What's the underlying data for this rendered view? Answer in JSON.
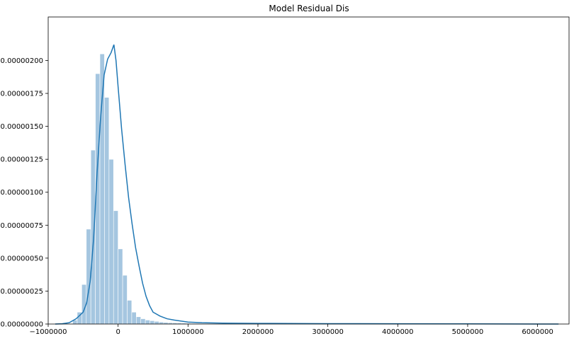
{
  "chart_data": {
    "type": "bar",
    "title": "Model Residual Dis",
    "xlabel": "",
    "ylabel": "",
    "xlim": [
      -1000000,
      6450000
    ],
    "ylim": [
      0,
      2.33e-06
    ],
    "grid": false,
    "legend": "none",
    "colors": {
      "bars": "#a5c6e0",
      "kde": "#1f77b4"
    },
    "xticks": [
      -1000000,
      0,
      1000000,
      2000000,
      3000000,
      4000000,
      5000000,
      6000000
    ],
    "xtick_labels": [
      "−1000000",
      "0",
      "1000000",
      "2000000",
      "3000000",
      "4000000",
      "5000000",
      "6000000"
    ],
    "yticks": [
      0,
      2.5e-07,
      5e-07,
      7.5e-07,
      1e-06,
      1.25e-06,
      1.5e-06,
      1.75e-06,
      2e-06
    ],
    "ytick_labels": [
      "0.00000000",
      "0.00000025",
      "0.00000050",
      "0.00000075",
      "0.00000100",
      "0.00000125",
      "0.00000150",
      "0.00000175",
      "0.00000200"
    ],
    "histogram": {
      "bin_start": -650000,
      "bin_width": 65000,
      "densities": [
        3e-08,
        9e-08,
        3e-07,
        7.2e-07,
        1.32e-06,
        1.9e-06,
        2.05e-06,
        1.72e-06,
        1.25e-06,
        8.6e-07,
        5.7e-07,
        3.7e-07,
        1.8e-07,
        9e-08,
        5.5e-08,
        4e-08,
        3e-08,
        2.5e-08,
        2e-08,
        1.5e-08,
        1.2e-08,
        1e-08,
        9e-09,
        8e-09,
        7e-09,
        6e-09,
        5e-09,
        5e-09,
        4e-09,
        4e-09,
        3e-09,
        3e-09,
        3e-09,
        3e-09,
        2e-09,
        2e-09,
        2e-09,
        2e-09,
        2e-09,
        2e-09,
        2e-09,
        2e-09,
        2e-09,
        1e-09,
        1e-09,
        1e-09,
        1e-09,
        1e-09,
        1e-09,
        1e-09,
        1e-09,
        1e-09,
        1e-09,
        1e-09,
        1e-09,
        1e-09,
        1e-09,
        1e-09,
        1e-09,
        1e-09,
        1e-09,
        1e-09,
        1e-09,
        1e-09,
        1e-09,
        1e-09,
        1e-09,
        1e-09,
        1e-09,
        1e-09,
        1e-09,
        1e-09,
        1e-09,
        1e-09,
        1e-09,
        1e-09,
        1e-09,
        1e-09,
        1e-09,
        1e-09,
        1e-09,
        1e-09,
        1e-09,
        1e-09,
        1e-09,
        1e-09,
        1e-09,
        1e-09,
        1e-09,
        1e-09,
        1e-09,
        1e-09,
        1e-09,
        1e-09,
        1e-09,
        1e-09,
        1e-09,
        1e-09,
        1e-09,
        1e-09,
        1e-09,
        1e-09,
        1e-09,
        1e-09,
        1e-09
      ]
    },
    "kde": {
      "x": [
        -900000,
        -800000,
        -700000,
        -600000,
        -500000,
        -450000,
        -400000,
        -350000,
        -300000,
        -250000,
        -200000,
        -150000,
        -100000,
        -60000,
        -30000,
        0,
        50000,
        100000,
        150000,
        200000,
        250000,
        300000,
        350000,
        400000,
        450000,
        500000,
        600000,
        700000,
        800000,
        1000000,
        1200000,
        1500000,
        2000000,
        3000000,
        4000000,
        5000000,
        6300000
      ],
      "y": [
        0,
        2e-09,
        1e-08,
        4e-08,
        9e-08,
        1.6e-07,
        3.2e-07,
        6.5e-07,
        1.15e-06,
        1.57e-06,
        1.89e-06,
        2.01e-06,
        2.06e-06,
        2.12e-06,
        2e-06,
        1.8e-06,
        1.48e-06,
        1.21e-06,
        9.6e-07,
        7.6e-07,
        5.8e-07,
        4.4e-07,
        3.1e-07,
        2.1e-07,
        1.4e-07,
        9e-08,
        6e-08,
        4e-08,
        3e-08,
        1.5e-08,
        1e-08,
        7e-09,
        5e-09,
        3e-09,
        2e-09,
        1e-09,
        0
      ]
    }
  }
}
